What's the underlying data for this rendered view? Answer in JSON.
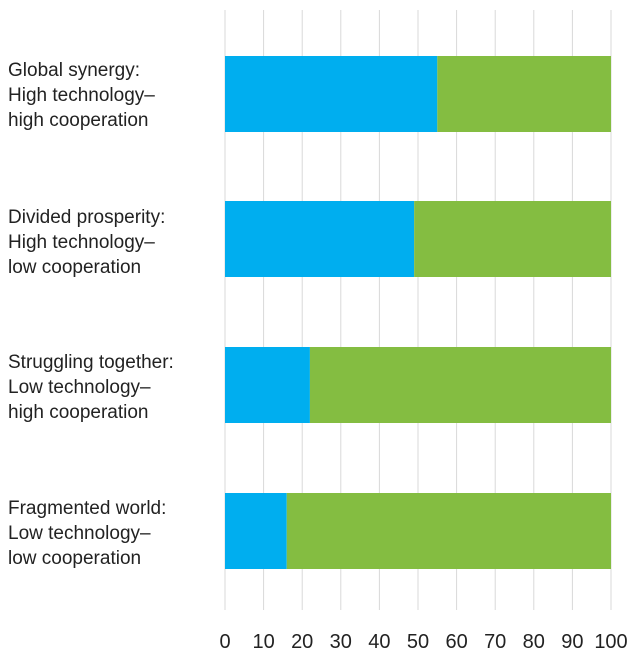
{
  "chart_data": {
    "type": "bar",
    "orientation": "horizontal",
    "stacked": true,
    "categories": [
      "Global synergy:\nHigh technology–\nhigh cooperation",
      "Divided prosperity:\nHigh technology–\nlow cooperation",
      "Struggling together:\nLow technology–\nhigh cooperation",
      "Fragmented world:\nLow technology–\nlow cooperation"
    ],
    "series": [
      {
        "values": [
          55,
          49,
          22,
          16
        ],
        "color": "#00aeef"
      },
      {
        "values": [
          45,
          51,
          78,
          84
        ],
        "color": "#84bd41"
      }
    ],
    "xlim": [
      0,
      100
    ],
    "xticks": [
      "0",
      "10",
      "20",
      "30",
      "40",
      "50",
      "60",
      "70",
      "80",
      "90",
      "100"
    ],
    "grid": true,
    "gridline_color": "#d9d9d9",
    "legend": "none"
  }
}
